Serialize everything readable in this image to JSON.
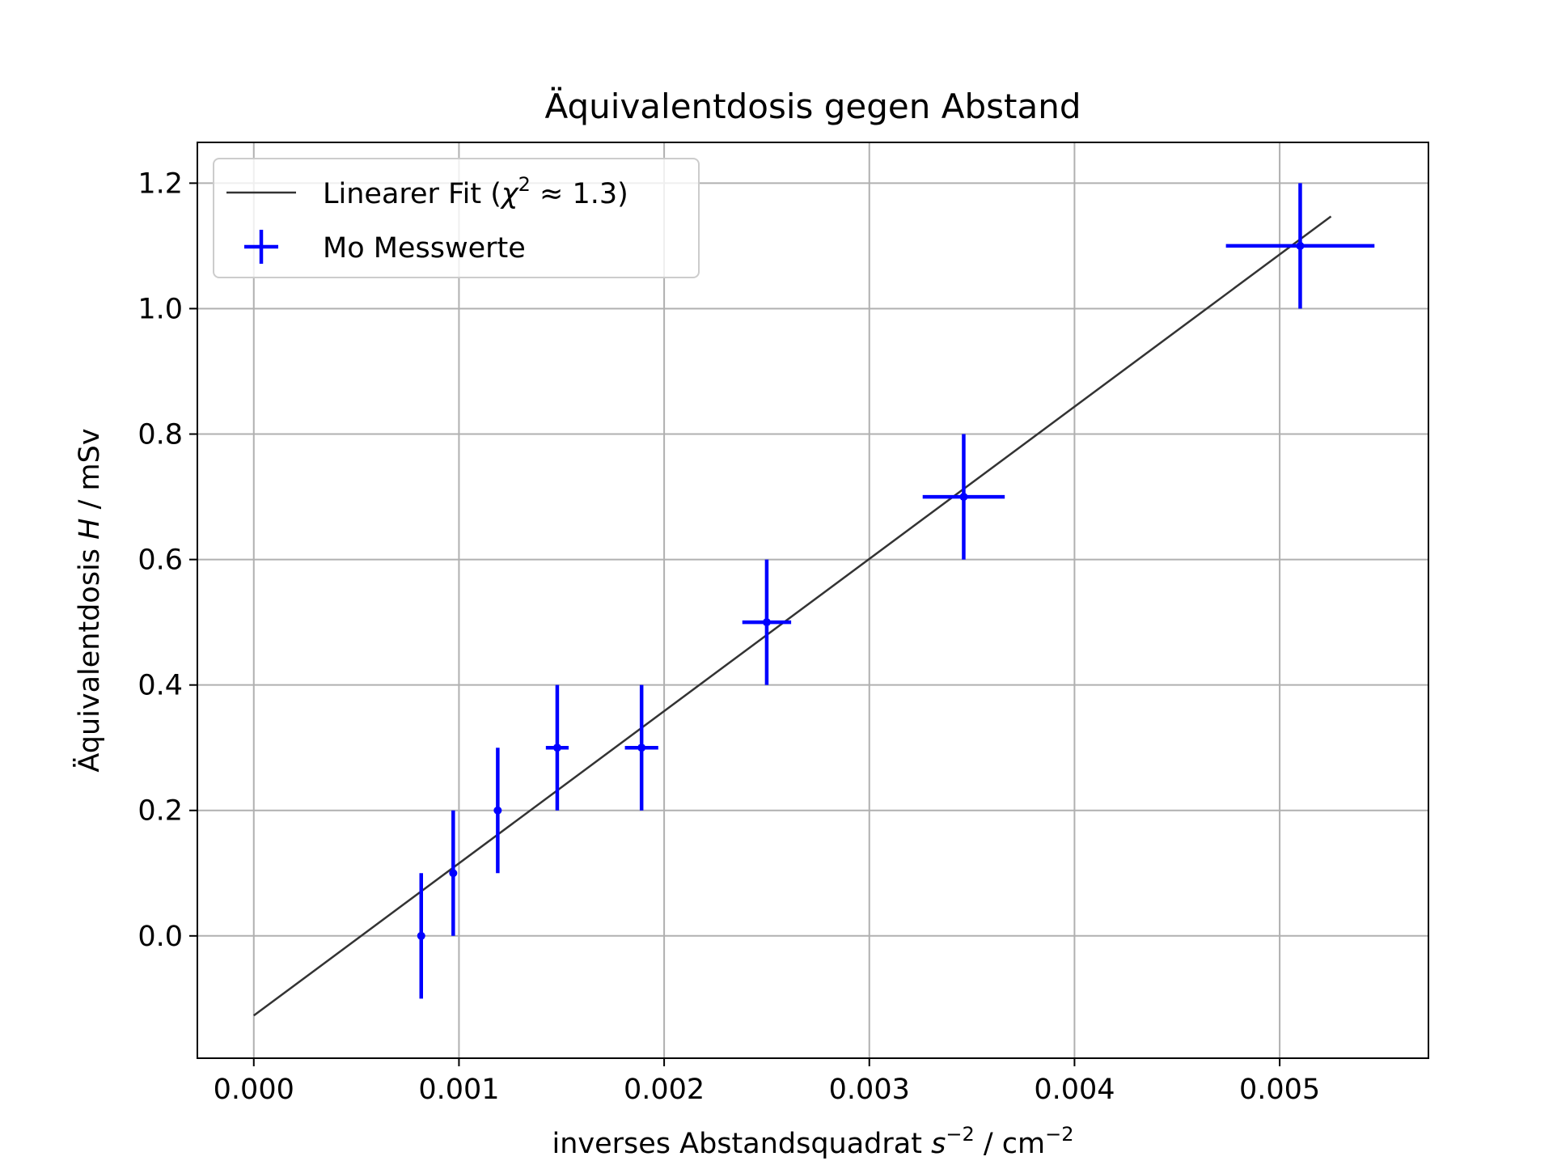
{
  "chart_data": {
    "type": "scatter",
    "title": "Äquivalentdosis gegen Abstand",
    "xlabel": {
      "pre": "inverses Abstandsquadrat ",
      "var": "s",
      "exp": "−2",
      "post": " / cm",
      "unit_exp": "−2"
    },
    "ylabel": {
      "pre": "Äquivalentdosis ",
      "var": "H",
      "post": " / mSv"
    },
    "xlim": [
      -0.000275,
      0.005725
    ],
    "ylim": [
      -0.195,
      1.265
    ],
    "xticks": [
      0.0,
      0.001,
      0.002,
      0.003,
      0.004,
      0.005
    ],
    "xtick_labels": [
      "0.000",
      "0.001",
      "0.002",
      "0.003",
      "0.004",
      "0.005"
    ],
    "yticks": [
      0.0,
      0.2,
      0.4,
      0.6,
      0.8,
      1.0,
      1.2
    ],
    "ytick_labels": [
      "0.0",
      "0.2",
      "0.4",
      "0.6",
      "0.8",
      "1.0",
      "1.2"
    ],
    "grid": true,
    "legend_position": "upper-left",
    "series": [
      {
        "name": "Mo Messwerte",
        "kind": "errorbar",
        "color": "#0000ff",
        "points": [
          {
            "x": 0.000816,
            "y": 0.0,
            "xerr": 8.2e-06,
            "yerr": 0.1
          },
          {
            "x": 0.000972,
            "y": 0.1,
            "xerr": 1.17e-05,
            "yerr": 0.1
          },
          {
            "x": 0.001189,
            "y": 0.2,
            "xerr": 1.78e-05,
            "yerr": 0.1
          },
          {
            "x": 0.001479,
            "y": 0.3,
            "xerr": 5.55e-05,
            "yerr": 0.1
          },
          {
            "x": 0.00189,
            "y": 0.3,
            "xerr": 8.13e-05,
            "yerr": 0.1
          },
          {
            "x": 0.0025,
            "y": 0.5,
            "xerr": 0.000119,
            "yerr": 0.1
          },
          {
            "x": 0.00346,
            "y": 0.7,
            "xerr": 0.0002,
            "yerr": 0.1
          },
          {
            "x": 0.0051,
            "y": 1.1,
            "xerr": 0.000362,
            "yerr": 0.1
          }
        ]
      },
      {
        "name": "Linearer Fit",
        "name_math": {
          "var": "χ",
          "exp": "2",
          "rest": " ≈ 1.3"
        },
        "kind": "line",
        "color": "#333333",
        "x": [
          0.0,
          0.00525
        ],
        "y": [
          -0.127,
          1.147
        ]
      }
    ]
  }
}
